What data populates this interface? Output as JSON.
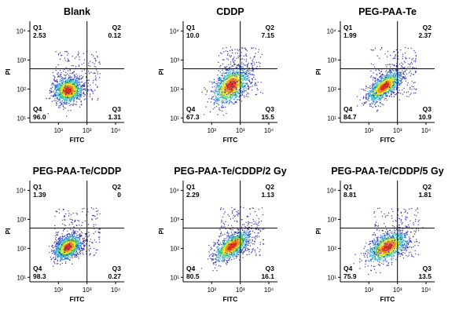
{
  "figure": {
    "colors": {
      "density_scale": [
        "#1a1aa8",
        "#2f6bd6",
        "#27b4c8",
        "#39c46a",
        "#e6e22a",
        "#f08a1c",
        "#d7301f"
      ],
      "axes": "#000000"
    }
  },
  "chart_data": [
    {
      "type": "scatter",
      "title": "Blank",
      "xlabel": "FITC",
      "ylabel": "PI",
      "xscale": "log",
      "yscale": "log",
      "xlim": [
        10,
        20000
      ],
      "ylim": [
        7,
        22000
      ],
      "x_ticks": [
        "10²",
        "10³",
        "10⁴"
      ],
      "y_ticks": [
        "10¹",
        "10²",
        "10³",
        "10⁴"
      ],
      "x_tick_values": [
        100,
        1000,
        10000
      ],
      "y_tick_values": [
        10,
        100,
        1000,
        10000
      ],
      "gate": {
        "x": 1000,
        "y": 500
      },
      "quadrants": [
        {
          "name": "Q1",
          "value": "2.53"
        },
        {
          "name": "Q2",
          "value": "0.12"
        },
        {
          "name": "Q3",
          "value": "1.31"
        },
        {
          "name": "Q4",
          "value": "96.0"
        }
      ],
      "population": {
        "center": [
          220,
          90
        ],
        "spread": [
          0.26,
          0.22
        ],
        "tilt": 0.05
      }
    },
    {
      "type": "scatter",
      "title": "CDDP",
      "xlabel": "FITC",
      "ylabel": "PI",
      "xscale": "log",
      "yscale": "log",
      "xlim": [
        10,
        20000
      ],
      "ylim": [
        7,
        22000
      ],
      "x_ticks": [
        "10²",
        "10³",
        "10⁴"
      ],
      "y_ticks": [
        "10¹",
        "10²",
        "10³",
        "10⁴"
      ],
      "x_tick_values": [
        100,
        1000,
        10000
      ],
      "y_tick_values": [
        10,
        100,
        1000,
        10000
      ],
      "gate": {
        "x": 1000,
        "y": 500
      },
      "quadrants": [
        {
          "name": "Q1",
          "value": "10.0"
        },
        {
          "name": "Q2",
          "value": "7.15"
        },
        {
          "name": "Q3",
          "value": "15.5"
        },
        {
          "name": "Q4",
          "value": "67.3"
        }
      ],
      "population": {
        "center": [
          480,
          130
        ],
        "spread": [
          0.32,
          0.3
        ],
        "tilt": 0.45
      }
    },
    {
      "type": "scatter",
      "title": "PEG-PAA-Te",
      "xlabel": "FITC",
      "ylabel": "PI",
      "xscale": "log",
      "yscale": "log",
      "xlim": [
        10,
        20000
      ],
      "ylim": [
        7,
        22000
      ],
      "x_ticks": [
        "10²",
        "10³",
        "10⁴"
      ],
      "y_ticks": [
        "10¹",
        "10²",
        "10³",
        "10⁴"
      ],
      "x_tick_values": [
        100,
        1000,
        10000
      ],
      "y_tick_values": [
        10,
        100,
        1000,
        10000
      ],
      "gate": {
        "x": 1000,
        "y": 500
      },
      "quadrants": [
        {
          "name": "Q1",
          "value": "1.99"
        },
        {
          "name": "Q2",
          "value": "2.37"
        },
        {
          "name": "Q3",
          "value": "10.9"
        },
        {
          "name": "Q4",
          "value": "84.7"
        }
      ],
      "population": {
        "center": [
          350,
          120
        ],
        "spread": [
          0.3,
          0.2
        ],
        "tilt": 0.6
      }
    },
    {
      "type": "scatter",
      "title": "PEG-PAA-Te/CDDP",
      "xlabel": "FITC",
      "ylabel": "PI",
      "xscale": "log",
      "yscale": "log",
      "xlim": [
        10,
        20000
      ],
      "ylim": [
        7,
        22000
      ],
      "x_ticks": [
        "10²",
        "10³",
        "10⁴"
      ],
      "y_ticks": [
        "10¹",
        "10²",
        "10³",
        "10⁴"
      ],
      "x_tick_values": [
        100,
        1000,
        10000
      ],
      "y_tick_values": [
        10,
        100,
        1000,
        10000
      ],
      "gate": {
        "x": 1000,
        "y": 500
      },
      "quadrants": [
        {
          "name": "Q1",
          "value": "1.39"
        },
        {
          "name": "Q2",
          "value": "0"
        },
        {
          "name": "Q3",
          "value": "0.27"
        },
        {
          "name": "Q4",
          "value": "98.3"
        }
      ],
      "population": {
        "center": [
          220,
          110
        ],
        "spread": [
          0.24,
          0.2
        ],
        "tilt": 0.35
      }
    },
    {
      "type": "scatter",
      "title": "PEG-PAA-Te/CDDP/2 Gy",
      "xlabel": "FITC",
      "ylabel": "PI",
      "xscale": "log",
      "yscale": "log",
      "xlim": [
        10,
        20000
      ],
      "ylim": [
        7,
        22000
      ],
      "x_ticks": [
        "10²",
        "10³",
        "10⁴"
      ],
      "y_ticks": [
        "10¹",
        "10²",
        "10³",
        "10⁴"
      ],
      "x_tick_values": [
        100,
        1000,
        10000
      ],
      "y_tick_values": [
        10,
        100,
        1000,
        10000
      ],
      "gate": {
        "x": 1000,
        "y": 500
      },
      "quadrants": [
        {
          "name": "Q1",
          "value": "2.29"
        },
        {
          "name": "Q2",
          "value": "1.13"
        },
        {
          "name": "Q3",
          "value": "16.1"
        },
        {
          "name": "Q4",
          "value": "80.5"
        }
      ],
      "population": {
        "center": [
          520,
          120
        ],
        "spread": [
          0.32,
          0.2
        ],
        "tilt": 0.55
      }
    },
    {
      "type": "scatter",
      "title": "PEG-PAA-Te/CDDP/5 Gy",
      "xlabel": "FITC",
      "ylabel": "PI",
      "xscale": "log",
      "yscale": "log",
      "xlim": [
        10,
        20000
      ],
      "ylim": [
        7,
        22000
      ],
      "x_ticks": [
        "10²",
        "10³",
        "10⁴"
      ],
      "y_ticks": [
        "10¹",
        "10²",
        "10³",
        "10⁴"
      ],
      "x_tick_values": [
        100,
        1000,
        10000
      ],
      "y_tick_values": [
        10,
        100,
        1000,
        10000
      ],
      "gate": {
        "x": 1000,
        "y": 500
      },
      "quadrants": [
        {
          "name": "Q1",
          "value": "8.81"
        },
        {
          "name": "Q2",
          "value": "1.81"
        },
        {
          "name": "Q3",
          "value": "13.5"
        },
        {
          "name": "Q4",
          "value": "75.9"
        }
      ],
      "population": {
        "center": [
          450,
          110
        ],
        "spread": [
          0.36,
          0.24
        ],
        "tilt": 0.4
      }
    }
  ]
}
